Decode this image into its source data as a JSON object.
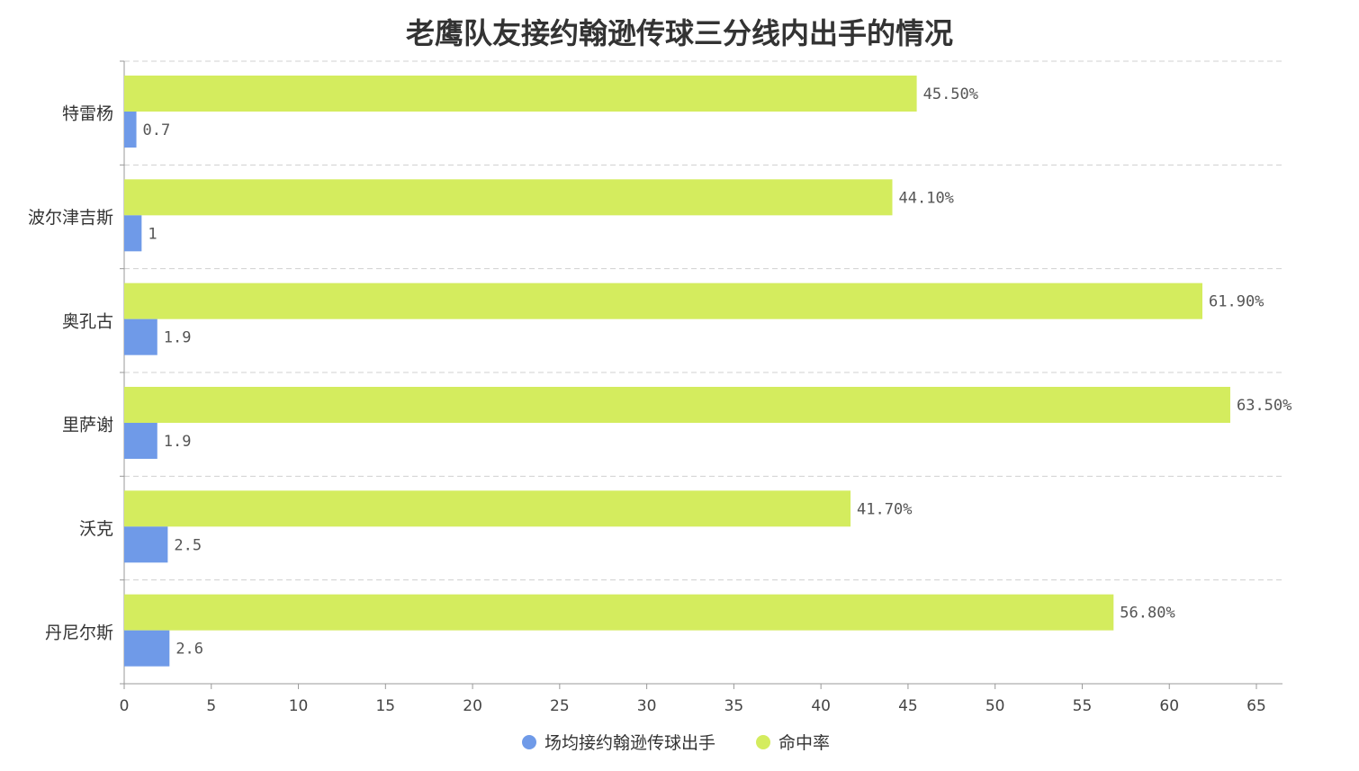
{
  "chart_data": {
    "type": "bar",
    "orientation": "horizontal",
    "title": "老鹰队友接约翰逊传球三分线内出手的情况",
    "categories": [
      "特雷杨",
      "波尔津吉斯",
      "奥孔古",
      "里萨谢",
      "沃克",
      "丹尼尔斯"
    ],
    "series": [
      {
        "name": "命中率",
        "color": "#d4ec5e",
        "values": [
          45.5,
          44.1,
          61.9,
          63.5,
          41.7,
          56.8
        ],
        "labels": [
          "45.50%",
          "44.10%",
          "61.90%",
          "63.50%",
          "41.70%",
          "56.80%"
        ]
      },
      {
        "name": "场均接约翰逊传球出手",
        "color": "#6f9ae8",
        "values": [
          0.7,
          1,
          1.9,
          1.9,
          2.5,
          2.6
        ],
        "labels": [
          "0.7",
          "1",
          "1.9",
          "1.9",
          "2.5",
          "2.6"
        ]
      }
    ],
    "xlim": [
      0,
      65
    ],
    "xticks": [
      0,
      5,
      10,
      15,
      20,
      25,
      30,
      35,
      40,
      45,
      50,
      55,
      60,
      65
    ],
    "xlabel": "",
    "ylabel": "",
    "grid": "horizontal-dashed",
    "legend": {
      "placement": "bottom-center",
      "entries": [
        "场均接约翰逊传球出手",
        "命中率"
      ]
    }
  }
}
